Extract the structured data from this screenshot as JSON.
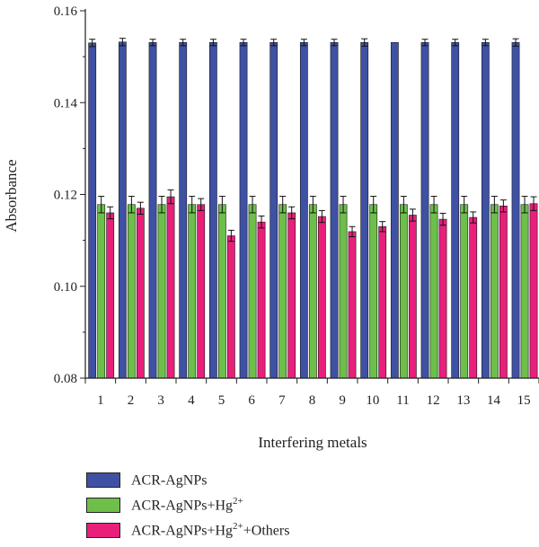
{
  "chart_data": {
    "type": "bar",
    "title": "",
    "xlabel": "Interfering metals",
    "ylabel": "Absorbance",
    "ylim": [
      0.08,
      0.16
    ],
    "yticks": [
      "0.08",
      "0.10",
      "0.12",
      "0.14",
      "0.16"
    ],
    "categories": [
      "1",
      "2",
      "3",
      "4",
      "5",
      "6",
      "7",
      "8",
      "9",
      "10",
      "11",
      "12",
      "13",
      "14",
      "15"
    ],
    "legend_position": "bottom-left",
    "grid": false,
    "series": [
      {
        "name_parts": {
          "pre": "ACR-AgNPs",
          "sup": "",
          "post": ""
        },
        "color": "#3f51a3",
        "values": [
          0.153,
          0.1532,
          0.1531,
          0.1531,
          0.1531,
          0.1531,
          0.1531,
          0.1531,
          0.1531,
          0.1531,
          0.1531,
          0.1531,
          0.1531,
          0.1531,
          0.1531
        ],
        "errors": [
          0.0008,
          0.0008,
          0.0007,
          0.0007,
          0.0007,
          0.0007,
          0.0007,
          0.0007,
          0.0007,
          0.0008,
          0,
          0.0007,
          0.0007,
          0.0007,
          0.0008
        ]
      },
      {
        "name_parts": {
          "pre": "ACR-AgNPs+Hg",
          "sup": "2+",
          "post": ""
        },
        "color": "#6dbf4a",
        "values": [
          0.1178,
          0.1178,
          0.1178,
          0.1178,
          0.1178,
          0.1178,
          0.1178,
          0.1178,
          0.1178,
          0.1178,
          0.1178,
          0.1178,
          0.1178,
          0.1178,
          0.1178
        ],
        "errors": [
          0.0018,
          0.0018,
          0.0018,
          0.0018,
          0.0018,
          0.0018,
          0.0018,
          0.0018,
          0.0018,
          0.0018,
          0.0018,
          0.0018,
          0.0018,
          0.0018,
          0.0018
        ]
      },
      {
        "name_parts": {
          "pre": "ACR-AgNPs+Hg",
          "sup": "2+",
          "post": "+Others"
        },
        "color": "#e8207a",
        "values": [
          0.116,
          0.117,
          0.1195,
          0.1178,
          0.111,
          0.114,
          0.116,
          0.1152,
          0.1119,
          0.113,
          0.1155,
          0.1146,
          0.115,
          0.1175,
          0.118
        ],
        "errors": [
          0.0013,
          0.0013,
          0.0015,
          0.0013,
          0.0012,
          0.0013,
          0.0013,
          0.0013,
          0.0011,
          0.0011,
          0.0013,
          0.0013,
          0.0012,
          0.0013,
          0.0015
        ]
      }
    ]
  }
}
